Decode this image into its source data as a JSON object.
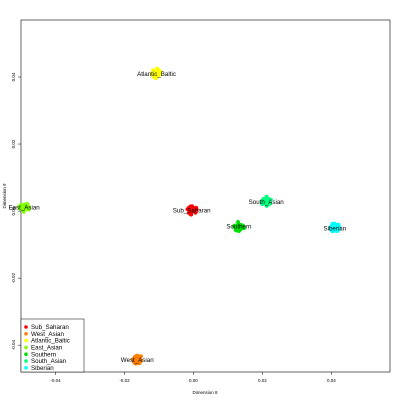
{
  "chart_data": {
    "type": "scatter",
    "xlabel": "Dimension 8",
    "ylabel": "Dimension 9",
    "xlim": [
      -0.05,
      0.057
    ],
    "ylim": [
      -0.048,
      0.057
    ],
    "x_ticks": [
      -0.04,
      -0.02,
      0.0,
      0.02,
      0.04
    ],
    "x_tick_labels": [
      "-0.04",
      "-0.02",
      "0.00",
      "0.02",
      "0.04"
    ],
    "y_ticks": [
      -0.04,
      -0.02,
      0.0,
      0.02,
      0.04
    ],
    "y_tick_labels": [
      "-0.04",
      "-0.02",
      "0.00",
      "0.02",
      "0.04"
    ],
    "grid": false,
    "legend_position": "bottom-left",
    "series": [
      {
        "name": "Sub_Saharan",
        "color": "#ff0000",
        "x": -0.0005,
        "y": 0.0003,
        "label": "Sub_Saharan"
      },
      {
        "name": "West_Asian",
        "color": "#ff7f00",
        "x": -0.0163,
        "y": -0.0443,
        "label": "West_Asian"
      },
      {
        "name": "Atlantic_Baltic",
        "color": "#ffff00",
        "x": -0.0107,
        "y": 0.041,
        "label": "Atlantic_Baltic"
      },
      {
        "name": "East_Asian",
        "color": "#7fff00",
        "x": -0.0491,
        "y": 0.0011,
        "label": "East_Asian"
      },
      {
        "name": "Southern",
        "color": "#00e000",
        "x": 0.0132,
        "y": -0.0046,
        "label": "Southern"
      },
      {
        "name": "South_Asian",
        "color": "#00ff7f",
        "x": 0.0211,
        "y": 0.0028,
        "label": "South_Asian"
      },
      {
        "name": "Siberian",
        "color": "#00ffff",
        "x": 0.041,
        "y": -0.0051,
        "label": "Siberian"
      }
    ]
  }
}
